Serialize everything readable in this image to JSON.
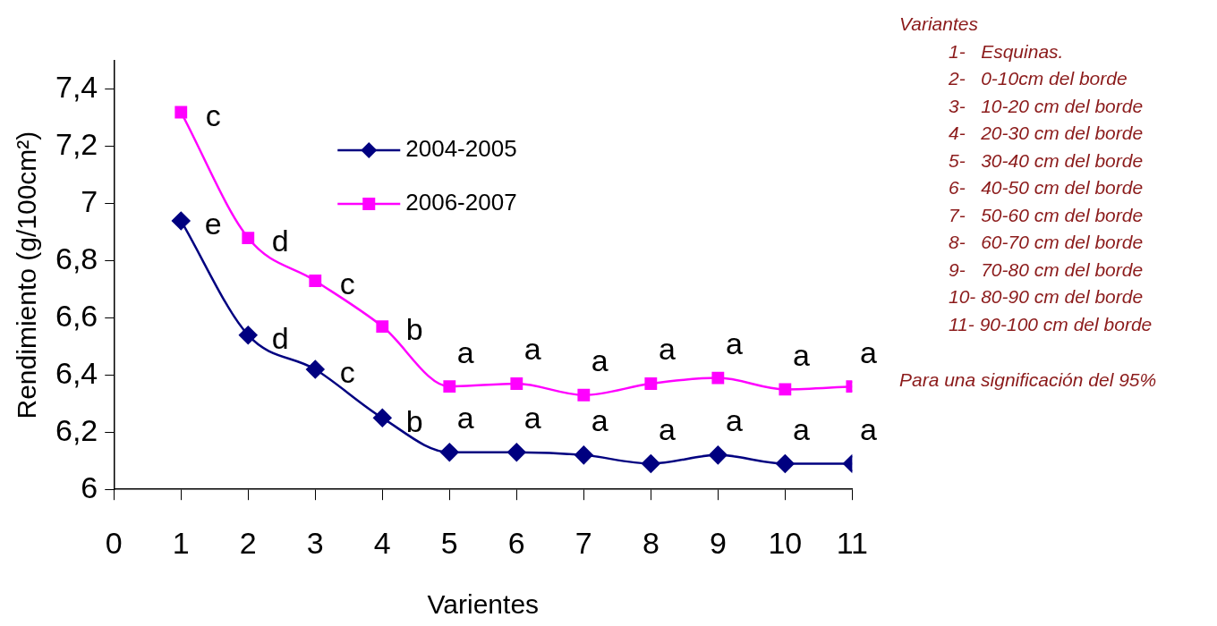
{
  "chart_data": {
    "type": "line",
    "xlabel": "Varientes",
    "ylabel": "Rendimiento (g/100cm²)",
    "x": [
      1,
      2,
      3,
      4,
      5,
      6,
      7,
      8,
      9,
      10,
      11
    ],
    "xlim": [
      0,
      11
    ],
    "xticks": [
      0,
      1,
      2,
      3,
      4,
      5,
      6,
      7,
      8,
      9,
      10,
      11
    ],
    "ylim": [
      6,
      7.5
    ],
    "yticks": [
      6,
      {
        "value": 6.2,
        "label": "6,2"
      },
      {
        "value": 6.4,
        "label": "6,4"
      },
      {
        "value": 6.6,
        "label": "6,6"
      },
      {
        "value": 6.8,
        "label": "6,8"
      },
      7,
      {
        "value": 7.2,
        "label": "7,2"
      },
      {
        "value": 7.4,
        "label": "7,4"
      }
    ],
    "grid": false,
    "legend": "top",
    "line_style": "solid",
    "series": [
      {
        "name": "2004-2005",
        "color": "#000080",
        "marker": "diamond",
        "values": [
          6.94,
          6.54,
          6.42,
          6.25,
          6.13,
          6.13,
          6.12,
          6.09,
          6.12,
          6.09,
          6.09
        ]
      },
      {
        "name": "2006-2007",
        "color": "#ff00ff",
        "marker": "square",
        "values": [
          7.32,
          6.88,
          6.73,
          6.57,
          6.36,
          6.37,
          6.33,
          6.37,
          6.39,
          6.35,
          6.36
        ]
      }
    ],
    "annotations": [
      {
        "text": "e",
        "x": 1,
        "y": 6.94
      },
      {
        "text": "d",
        "x": 2,
        "y": 6.54
      },
      {
        "text": "c",
        "x": 3,
        "y": 6.42
      },
      {
        "text": "b",
        "x": 4,
        "y": 6.25
      },
      {
        "text": "a",
        "x": 5,
        "y": 6.13
      },
      {
        "text": "a",
        "x": 6,
        "y": 6.13
      },
      {
        "text": "a",
        "x": 7,
        "y": 6.12
      },
      {
        "text": "a",
        "x": 8,
        "y": 6.09
      },
      {
        "text": "a",
        "x": 9,
        "y": 6.12
      },
      {
        "text": "a",
        "x": 10,
        "y": 6.09
      },
      {
        "text": "a",
        "x": 11,
        "y": 6.09
      },
      {
        "text": "c",
        "x": 1,
        "y": 7.32
      },
      {
        "text": "d",
        "x": 2,
        "y": 6.88
      },
      {
        "text": "c",
        "x": 3,
        "y": 6.73
      },
      {
        "text": "b",
        "x": 4,
        "y": 6.57
      },
      {
        "text": "a",
        "x": 5,
        "y": 6.36
      },
      {
        "text": "a",
        "x": 6,
        "y": 6.37
      },
      {
        "text": "a",
        "x": 7,
        "y": 6.33
      },
      {
        "text": "a",
        "x": 8,
        "y": 6.37
      },
      {
        "text": "a",
        "x": 9,
        "y": 6.39
      },
      {
        "text": "a",
        "x": 10,
        "y": 6.35
      },
      {
        "text": "a",
        "x": 11,
        "y": 6.36
      },
      "Variantes",
      "1-   Esquinas.",
      "2-   0-10cm del borde",
      "3-   10-20 cm del borde",
      "4-   20-30 cm del borde",
      "5-   30-40 cm del borde",
      "6-   40-50 cm del borde",
      "7-   50-60 cm del borde",
      "8-   60-70 cm del borde",
      "9-   70-80 cm del borde",
      "10- 80-90 cm del borde",
      "11- 90-100 cm del borde",
      "Para una significación del 95%"
    ]
  }
}
